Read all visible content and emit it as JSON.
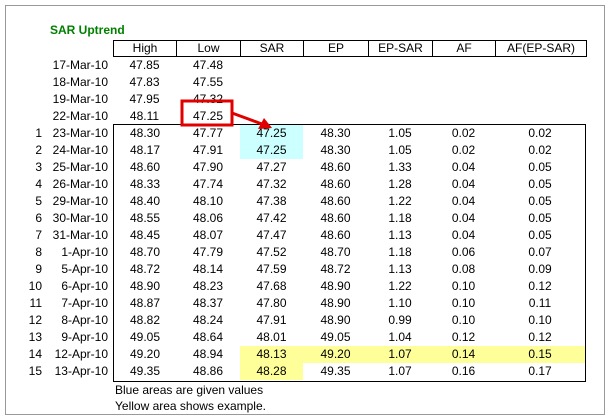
{
  "title": "SAR Uptrend",
  "headers": [
    "High",
    "Low",
    "SAR",
    "EP",
    "EP-SAR",
    "AF",
    "AF(EP-SAR)"
  ],
  "prior_rows": [
    {
      "date": "17-Mar-10",
      "high": "47.85",
      "low": "47.48"
    },
    {
      "date": "18-Mar-10",
      "high": "47.83",
      "low": "47.55"
    },
    {
      "date": "19-Mar-10",
      "high": "47.95",
      "low": "47.32"
    },
    {
      "date": "22-Mar-10",
      "high": "48.11",
      "low": "47.25"
    }
  ],
  "rows": [
    {
      "n": 1,
      "date": "23-Mar-10",
      "high": "48.30",
      "low": "47.77",
      "sar": "47.25",
      "ep": "48.30",
      "ep_sar": "1.05",
      "af": "0.02",
      "af_ep_sar": "0.02"
    },
    {
      "n": 2,
      "date": "24-Mar-10",
      "high": "48.17",
      "low": "47.91",
      "sar": "47.25",
      "ep": "48.30",
      "ep_sar": "1.05",
      "af": "0.02",
      "af_ep_sar": "0.02"
    },
    {
      "n": 3,
      "date": "25-Mar-10",
      "high": "48.60",
      "low": "47.90",
      "sar": "47.27",
      "ep": "48.60",
      "ep_sar": "1.33",
      "af": "0.04",
      "af_ep_sar": "0.05"
    },
    {
      "n": 4,
      "date": "26-Mar-10",
      "high": "48.33",
      "low": "47.74",
      "sar": "47.32",
      "ep": "48.60",
      "ep_sar": "1.28",
      "af": "0.04",
      "af_ep_sar": "0.05"
    },
    {
      "n": 5,
      "date": "29-Mar-10",
      "high": "48.40",
      "low": "48.10",
      "sar": "47.38",
      "ep": "48.60",
      "ep_sar": "1.22",
      "af": "0.04",
      "af_ep_sar": "0.05"
    },
    {
      "n": 6,
      "date": "30-Mar-10",
      "high": "48.55",
      "low": "48.06",
      "sar": "47.42",
      "ep": "48.60",
      "ep_sar": "1.18",
      "af": "0.04",
      "af_ep_sar": "0.05"
    },
    {
      "n": 7,
      "date": "31-Mar-10",
      "high": "48.45",
      "low": "48.07",
      "sar": "47.47",
      "ep": "48.60",
      "ep_sar": "1.13",
      "af": "0.04",
      "af_ep_sar": "0.05"
    },
    {
      "n": 8,
      "date": "1-Apr-10",
      "high": "48.70",
      "low": "47.79",
      "sar": "47.52",
      "ep": "48.70",
      "ep_sar": "1.18",
      "af": "0.06",
      "af_ep_sar": "0.07"
    },
    {
      "n": 9,
      "date": "5-Apr-10",
      "high": "48.72",
      "low": "48.14",
      "sar": "47.59",
      "ep": "48.72",
      "ep_sar": "1.13",
      "af": "0.08",
      "af_ep_sar": "0.09"
    },
    {
      "n": 10,
      "date": "6-Apr-10",
      "high": "48.90",
      "low": "48.23",
      "sar": "47.68",
      "ep": "48.90",
      "ep_sar": "1.22",
      "af": "0.10",
      "af_ep_sar": "0.12"
    },
    {
      "n": 11,
      "date": "7-Apr-10",
      "high": "48.87",
      "low": "48.37",
      "sar": "47.80",
      "ep": "48.90",
      "ep_sar": "1.10",
      "af": "0.10",
      "af_ep_sar": "0.11"
    },
    {
      "n": 12,
      "date": "8-Apr-10",
      "high": "48.82",
      "low": "48.24",
      "sar": "47.91",
      "ep": "48.90",
      "ep_sar": "0.99",
      "af": "0.10",
      "af_ep_sar": "0.10"
    },
    {
      "n": 13,
      "date": "9-Apr-10",
      "high": "49.05",
      "low": "48.64",
      "sar": "48.01",
      "ep": "49.05",
      "ep_sar": "1.04",
      "af": "0.12",
      "af_ep_sar": "0.12"
    },
    {
      "n": 14,
      "date": "12-Apr-10",
      "high": "49.20",
      "low": "48.94",
      "sar": "48.13",
      "ep": "49.20",
      "ep_sar": "1.07",
      "af": "0.14",
      "af_ep_sar": "0.15"
    },
    {
      "n": 15,
      "date": "13-Apr-10",
      "high": "49.35",
      "low": "48.86",
      "sar": "48.28",
      "ep": "49.35",
      "ep_sar": "1.07",
      "af": "0.16",
      "af_ep_sar": "0.17"
    }
  ],
  "notes": [
    "Blue areas are given values",
    "Yellow area shows example."
  ]
}
